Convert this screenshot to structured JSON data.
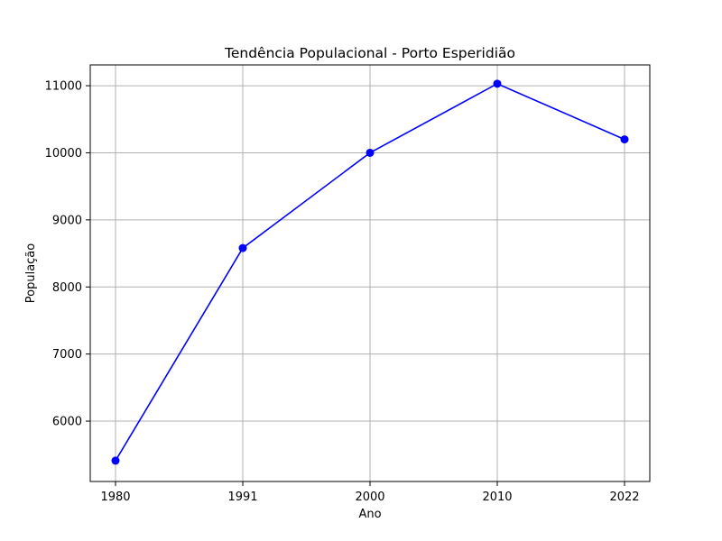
{
  "chart_data": {
    "type": "line",
    "title": "Tendência Populacional - Porto Esperidião",
    "xlabel": "Ano",
    "ylabel": "População",
    "categories": [
      "1980",
      "1991",
      "2000",
      "2010",
      "2022"
    ],
    "series": [
      {
        "values": [
          5410,
          8580,
          10000,
          11030,
          10200
        ]
      }
    ],
    "ylim": [
      5100,
      11310
    ],
    "yticks": [
      6000,
      7000,
      8000,
      9000,
      10000,
      11000
    ],
    "grid": true,
    "line_color": "#0000ff",
    "marker_color": "#0000ff"
  }
}
